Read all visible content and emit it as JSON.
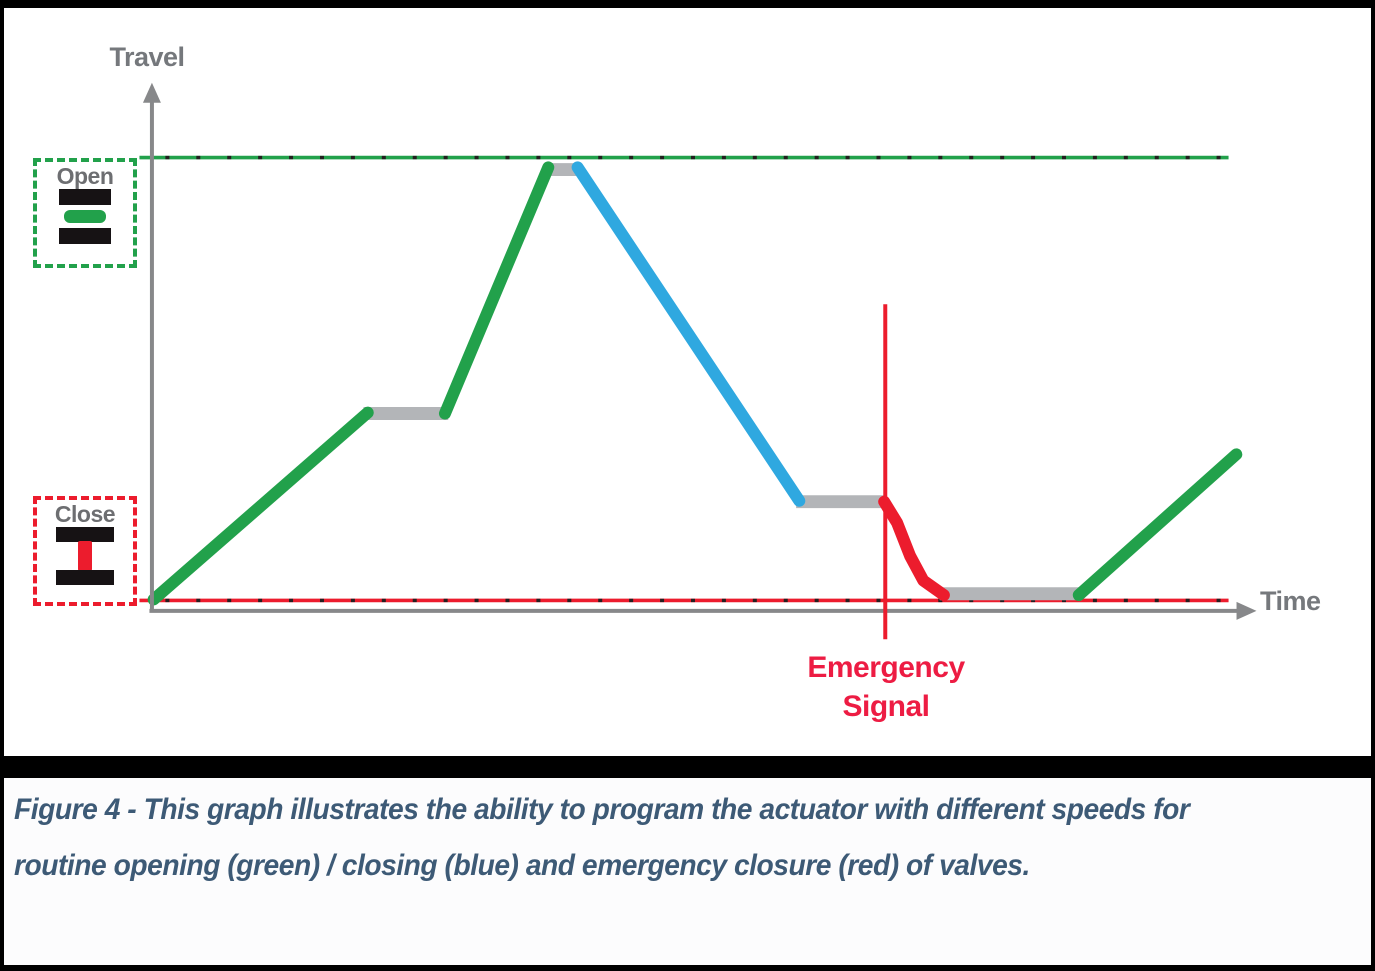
{
  "figure": {
    "y_axis_label": "Travel",
    "x_axis_label": "Time",
    "open_box_label": "Open",
    "close_box_label": "Close",
    "emergency_label": [
      "Emergency",
      "Signal"
    ]
  },
  "caption": {
    "line1": "Figure 4 - This graph illustrates the ability to program the actuator with different speeds for",
    "line2": "routine opening (green) / closing (blue) and emergency closure (red) of valves.",
    "full_text": "Figure 4 - This graph illustrates the ability to program the actuator with different speeds for routine opening (green) / closing (blue) and emergency closure (red) of valves."
  },
  "colors": {
    "opening_green": "#22A14B",
    "closing_blue": "#2FA8E0",
    "emergency_red": "#EC1C2D",
    "pause_gray": "#B3B5B8",
    "axis_gray": "#87888A",
    "label_gray": "#75787C",
    "tick_black": "#231F20",
    "emergency_text_red": "#ED1C43",
    "caption_blue": "#3D5A76"
  },
  "chart_data": {
    "type": "line",
    "title": "",
    "xlabel": "Time",
    "ylabel": "Travel",
    "x_range": [
      0,
      100
    ],
    "y_range": [
      0,
      100
    ],
    "grid": false,
    "levels": [
      {
        "name": "Open",
        "travel": 100,
        "line_color": "#22A14B",
        "line_style": "solid with black tick dots"
      },
      {
        "name": "Close",
        "travel": 0,
        "line_color": "#EC1C2D",
        "line_style": "solid with black tick dots"
      }
    ],
    "series": [
      {
        "name": "routine-opening-ramp-1",
        "color_role": "opening_green",
        "kind": "motion",
        "points": [
          [
            0.2,
            0.2
          ],
          [
            19.9,
            42.4
          ]
        ]
      },
      {
        "name": "pause-1",
        "color_role": "pause_gray",
        "kind": "pause",
        "points": [
          [
            19.5,
            42.2
          ],
          [
            27.3,
            42.2
          ]
        ]
      },
      {
        "name": "routine-opening-ramp-2",
        "color_role": "opening_green",
        "kind": "motion",
        "points": [
          [
            27.0,
            42.2
          ],
          [
            36.5,
            97.8
          ]
        ]
      },
      {
        "name": "pause-at-open",
        "color_role": "pause_gray",
        "kind": "pause",
        "points": [
          [
            36.3,
            97.3
          ],
          [
            39.4,
            97.3
          ]
        ]
      },
      {
        "name": "routine-closing-ramp",
        "color_role": "closing_blue",
        "kind": "motion",
        "points": [
          [
            39.2,
            97.8
          ],
          [
            59.6,
            22.5
          ]
        ]
      },
      {
        "name": "pause-2",
        "color_role": "pause_gray",
        "kind": "pause",
        "points": [
          [
            59.3,
            22.3
          ],
          [
            67.6,
            22.3
          ]
        ]
      },
      {
        "name": "emergency-closure-ramp",
        "color_role": "emergency_red",
        "kind": "motion",
        "points": [
          [
            67.4,
            22.3
          ],
          [
            68.6,
            17.5
          ],
          [
            69.8,
            10.0
          ],
          [
            71.0,
            4.5
          ],
          [
            72.9,
            1.2
          ]
        ]
      },
      {
        "name": "pause-at-close",
        "color_role": "pause_gray",
        "kind": "pause",
        "points": [
          [
            72.5,
            1.5
          ],
          [
            85.6,
            1.5
          ]
        ]
      },
      {
        "name": "routine-opening-ramp-3",
        "color_role": "opening_green",
        "kind": "motion",
        "points": [
          [
            85.3,
            1.2
          ],
          [
            99.8,
            33.0
          ]
        ]
      }
    ],
    "emergency_signal": {
      "time": 67.5,
      "label": "Emergency Signal"
    },
    "legend_position": "none"
  }
}
